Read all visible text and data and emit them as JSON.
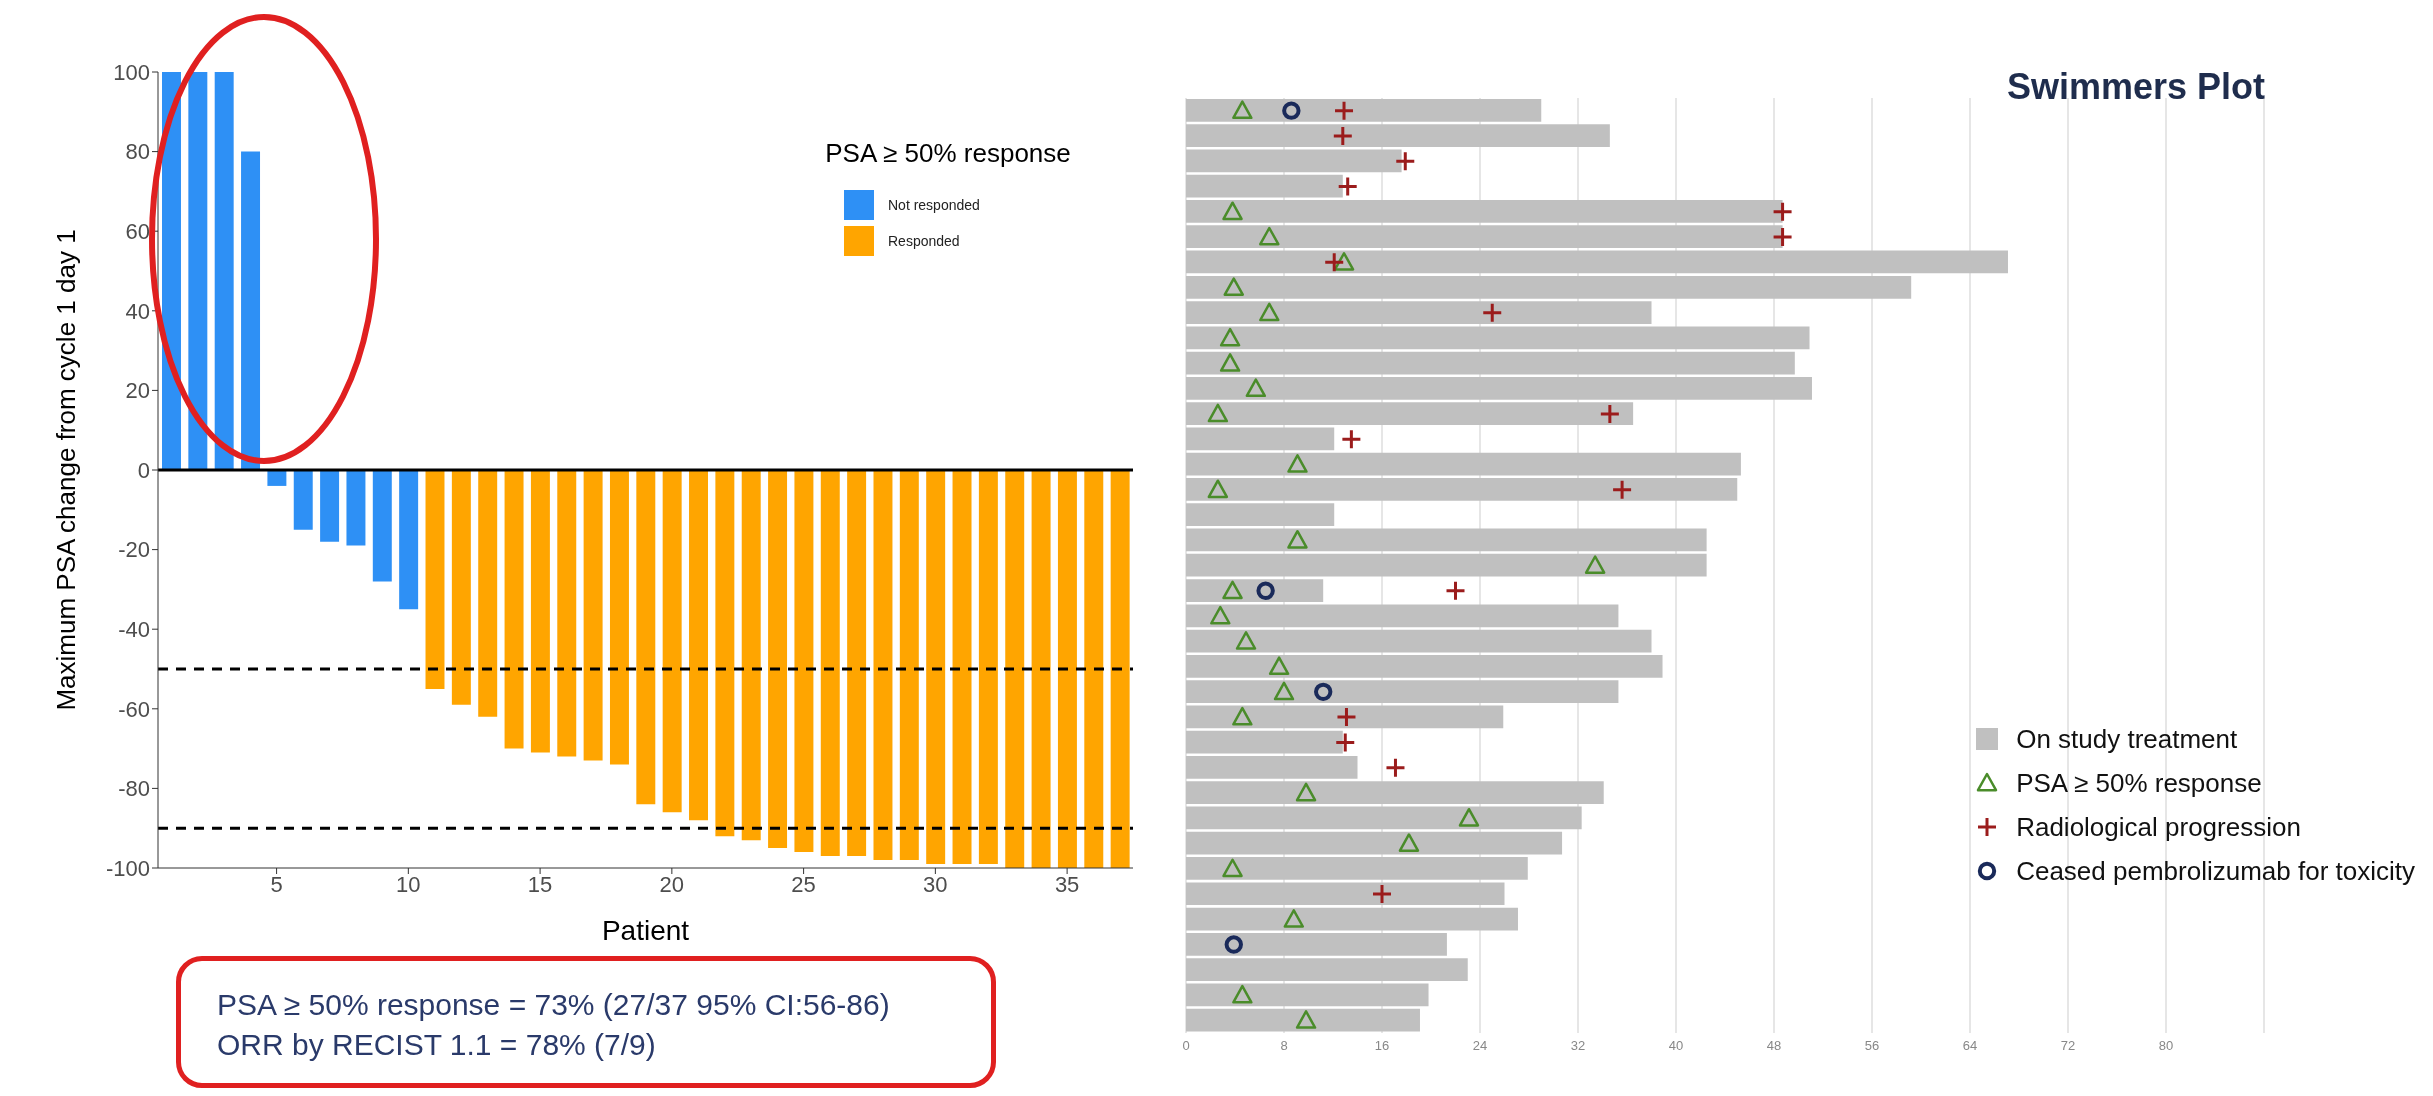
{
  "chart_data": [
    {
      "type": "bar",
      "xlabel": "Patient",
      "ylabel": "Maximum PSA change from cycle 1 day 1",
      "legend_title": "PSA ≥ 50% response",
      "legend": "top right",
      "stacked": true,
      "x": [
        1,
        2,
        3,
        4,
        5,
        6,
        7,
        8,
        9,
        10,
        11,
        12,
        13,
        14,
        15,
        16,
        17,
        18,
        19,
        20,
        21,
        22,
        23,
        24,
        25,
        26,
        27,
        28,
        29,
        30,
        31,
        32,
        33,
        34,
        35,
        36,
        37
      ],
      "series": [
        {
          "name": "Not responded",
          "color": "#2e90f5",
          "values": [
            100,
            100,
            100,
            80,
            -4,
            -15,
            -18,
            -19,
            -28,
            -35,
            null,
            null,
            null,
            null,
            null,
            null,
            null,
            null,
            null,
            null,
            null,
            null,
            null,
            null,
            null,
            null,
            null,
            null,
            null,
            null,
            null,
            null,
            null,
            null,
            null,
            null,
            null
          ]
        },
        {
          "name": "Responded",
          "color": "#ffa500",
          "values": [
            null,
            null,
            null,
            null,
            null,
            null,
            null,
            null,
            null,
            null,
            -55,
            -59,
            -62,
            -70,
            -71,
            -72,
            -73,
            -74,
            -84,
            -86,
            -88,
            -92,
            -93,
            -95,
            -96,
            -97,
            -97,
            -98,
            -98,
            -99,
            -99,
            -99,
            -100,
            -100,
            -100,
            -100,
            -100
          ]
        }
      ],
      "xlim": [
        0.5,
        37.5
      ],
      "xticks": [
        5,
        10,
        15,
        20,
        25,
        30,
        35
      ],
      "ylim": [
        -100,
        100
      ],
      "yticks": [
        -100,
        -80,
        -60,
        -40,
        -20,
        0,
        20,
        40,
        60,
        80,
        100
      ],
      "grid": false,
      "ref_lines": [
        {
          "axis": "y",
          "value": 0,
          "color": "#000000",
          "line_style": "solid"
        },
        {
          "axis": "y",
          "value": -50,
          "color": "#000000",
          "line_style": "dashed"
        },
        {
          "axis": "y",
          "value": -90,
          "color": "#000000",
          "line_style": "dashed"
        }
      ],
      "annotations": [
        "PSA ≥ 50% response = 73% (27/37 95% CI:56-86)",
        "ORR by RECIST 1.1 = 78% (7/9)"
      ]
    },
    {
      "type": "bar",
      "title": "Swimmers Plot",
      "orientation": "horizontal",
      "legend": "bottom right",
      "grid": "x",
      "tick_labels": "x",
      "categories": [
        null,
        null,
        null,
        null,
        null,
        null,
        null,
        null,
        null,
        null,
        null,
        null,
        null,
        null,
        null,
        null,
        null,
        null,
        null,
        null,
        null,
        null,
        null,
        null,
        null,
        null,
        null,
        null,
        null,
        null,
        null,
        null,
        null,
        null,
        null,
        null,
        null
      ],
      "series": [
        {
          "name": "On study treatment",
          "type": "bar",
          "color": "#c0c0c0",
          "values": [
            29.0,
            34.6,
            17.6,
            12.8,
            48.7,
            48.7,
            67.1,
            59.2,
            38.0,
            50.9,
            49.7,
            51.1,
            36.5,
            12.1,
            45.3,
            45.0,
            12.1,
            42.5,
            42.5,
            11.2,
            35.3,
            38.0,
            38.9,
            35.3,
            25.9,
            12.8,
            14.0,
            34.1,
            32.3,
            30.7,
            27.9,
            26.0,
            27.1,
            21.3,
            23.0,
            19.8,
            19.1
          ]
        },
        {
          "name": "PSA ≥ 50% response",
          "type": "scatter",
          "marker": "triangle",
          "color": "#4a8c2a",
          "values": [
            4.6,
            null,
            null,
            null,
            3.8,
            6.8,
            12.9,
            3.9,
            6.8,
            3.6,
            3.6,
            5.7,
            2.6,
            null,
            9.1,
            2.6,
            null,
            9.1,
            33.4,
            3.8,
            2.8,
            4.9,
            7.6,
            8.0,
            4.6,
            null,
            null,
            9.8,
            23.1,
            18.2,
            3.8,
            null,
            8.8,
            null,
            null,
            4.6,
            9.8
          ]
        },
        {
          "name": "Radiological progression",
          "type": "scatter",
          "marker": "cross",
          "color": "#9b1c1c",
          "values": [
            12.9,
            12.8,
            17.9,
            13.2,
            48.7,
            48.7,
            12.1,
            null,
            25.0,
            null,
            null,
            null,
            34.6,
            13.5,
            null,
            35.6,
            null,
            null,
            null,
            22.0,
            null,
            null,
            null,
            null,
            13.1,
            13.0,
            17.1,
            null,
            null,
            null,
            null,
            16.0,
            null,
            null,
            null,
            null,
            null
          ]
        },
        {
          "name": "Ceased pembrolizumab for toxicity",
          "type": "scatter",
          "marker": "circle",
          "color": "#1a2a5a",
          "values": [
            8.6,
            null,
            null,
            null,
            null,
            null,
            null,
            null,
            null,
            null,
            null,
            null,
            null,
            null,
            null,
            null,
            null,
            null,
            null,
            6.5,
            null,
            null,
            null,
            11.2,
            null,
            null,
            null,
            null,
            null,
            null,
            null,
            null,
            null,
            3.9,
            null,
            null,
            null
          ]
        }
      ],
      "xlim": [
        0,
        88
      ],
      "xticks": [
        0,
        8,
        16,
        24,
        32,
        40,
        48,
        56,
        64,
        72,
        80
      ]
    }
  ]
}
